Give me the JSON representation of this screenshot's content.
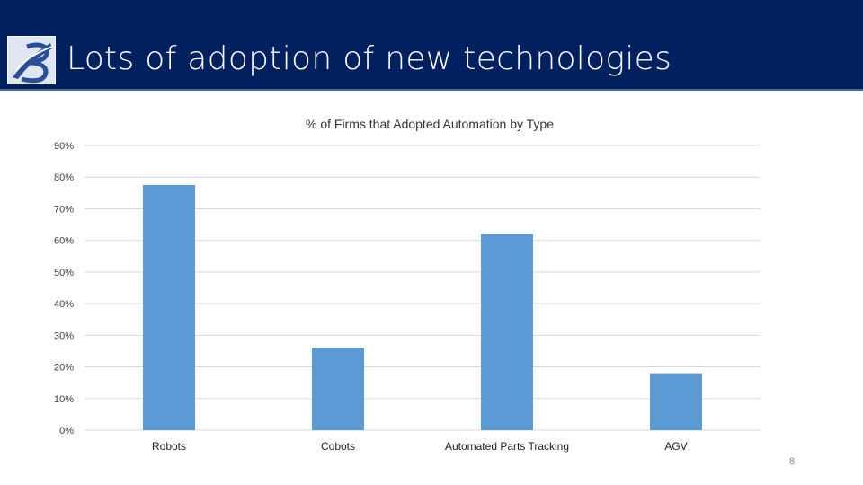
{
  "slide": {
    "title": "Lots of adoption of new technologies",
    "page_number": "8"
  },
  "colors": {
    "header_bg": "#012060",
    "bar": "#5b9bd5",
    "gridline": "#d9d9d9"
  },
  "logo": {
    "icon": "b-swoosh-logo-icon"
  },
  "chart_data": {
    "type": "bar",
    "title": "% of Firms that Adopted Automation by Type",
    "categories": [
      "Robots",
      "Cobots",
      "Automated Parts Tracking",
      "AGV"
    ],
    "values": [
      77.5,
      26,
      62,
      18
    ],
    "ylim": [
      0,
      90
    ],
    "yticks": [
      "0%",
      "10%",
      "20%",
      "30%",
      "40%",
      "50%",
      "60%",
      "70%",
      "80%",
      "90%"
    ],
    "xlabel": "",
    "ylabel": "",
    "grid": true,
    "legend": "none"
  }
}
